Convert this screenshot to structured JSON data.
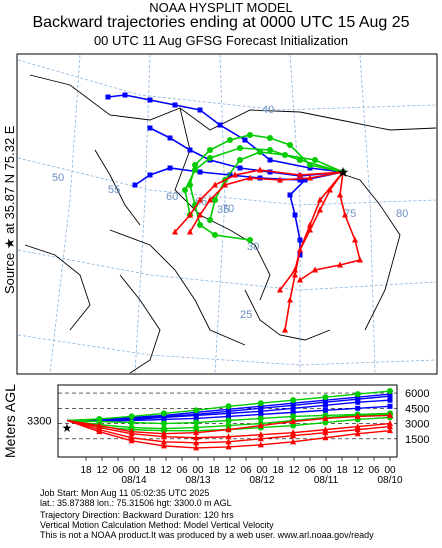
{
  "header": {
    "line1": "NOAA HYSPLIT MODEL",
    "line2": "Backward trajectories ending at 0000 UTC 15 Aug 25",
    "line3": "00 UTC 11 Aug    GFSG  Forecast Initialization"
  },
  "source_label": "Source ★ at   35.87 N   75.32 E",
  "agl_label": "Meters AGL",
  "map_labels": {
    "lat": [
      "40",
      "35",
      "30",
      "25"
    ],
    "lon": [
      "50",
      "55",
      "60",
      "65",
      "70",
      "75",
      "80"
    ]
  },
  "footer": {
    "line1": "Job Start: Mon Aug 11 05:02:35 UTC 2025",
    "line2": "lat.: 35.87388   lon.: 75.31506   hgt: 3300.0 m AGL",
    "line3": "Trajectory Direction: Backward        Duration: 120 hrs",
    "line4": "Vertical Motion Calculation Method: Model Vertical Velocity",
    "line5": "This is not a NOAA product.It was produced by a web user. www.arl.noaa.gov/ready"
  },
  "colors": {
    "red": "#ff0000",
    "blue": "#0000ff",
    "green": "#00cc00"
  },
  "chart_data": {
    "type": "line",
    "title": "Backward trajectories ending at 0000 UTC 15 Aug 25",
    "source": {
      "lat": 35.87,
      "lon": 75.32,
      "height_m": 3300
    },
    "height_axis": {
      "label": "Meters AGL",
      "right_ticks": [
        6000,
        4500,
        3000,
        1500
      ],
      "left_tick": 3300,
      "ylim": [
        0,
        6500
      ]
    },
    "time_axis": {
      "hour_ticks": [
        "18",
        "12",
        "06",
        "00",
        "18",
        "12",
        "06",
        "00",
        "18",
        "12",
        "06",
        "00",
        "18",
        "12",
        "06",
        "00",
        "18",
        "12",
        "06",
        "00"
      ],
      "date_ticks": [
        "08/14",
        "08/13",
        "08/12",
        "08/11",
        "08/10"
      ],
      "hours_back": [
        0,
        120
      ]
    },
    "series": [
      {
        "color": "blue",
        "hours_back": [
          0,
          12,
          24,
          36,
          48,
          60,
          72,
          84,
          96,
          108,
          120
        ],
        "height_m": [
          3300,
          3400,
          3600,
          3800,
          4100,
          4400,
          4700,
          5000,
          5300,
          5600,
          5900
        ]
      },
      {
        "color": "blue",
        "hours_back": [
          0,
          12,
          24,
          36,
          48,
          60,
          72,
          84,
          96,
          108,
          120
        ],
        "height_m": [
          3300,
          3350,
          3500,
          3700,
          3900,
          4200,
          4500,
          4800,
          5100,
          5400,
          5700
        ]
      },
      {
        "color": "blue",
        "hours_back": [
          0,
          12,
          24,
          36,
          48,
          60,
          72,
          84,
          96,
          108,
          120
        ],
        "height_m": [
          3300,
          3300,
          3400,
          3600,
          3800,
          4000,
          4200,
          4500,
          4800,
          5100,
          5300
        ]
      },
      {
        "color": "blue",
        "hours_back": [
          0,
          12,
          24,
          36,
          48,
          60,
          72,
          84,
          96,
          108,
          120
        ],
        "height_m": [
          3300,
          3250,
          3300,
          3400,
          3500,
          3700,
          3900,
          4100,
          4300,
          4500,
          4700
        ]
      },
      {
        "color": "green",
        "hours_back": [
          0,
          12,
          24,
          36,
          48,
          60,
          72,
          84,
          96,
          108,
          120
        ],
        "height_m": [
          3300,
          3450,
          3700,
          4000,
          4300,
          4700,
          5000,
          5300,
          5600,
          5900,
          6200
        ]
      },
      {
        "color": "green",
        "hours_back": [
          0,
          12,
          24,
          36,
          48,
          60,
          72,
          84,
          96,
          108,
          120
        ],
        "height_m": [
          3300,
          3200,
          3100,
          3000,
          3100,
          3300,
          3500,
          3700,
          3800,
          3900,
          4000
        ]
      },
      {
        "color": "green",
        "hours_back": [
          0,
          12,
          24,
          36,
          48,
          60,
          72,
          84,
          96,
          108,
          120
        ],
        "height_m": [
          3300,
          2900,
          2600,
          2500,
          2600,
          2800,
          3000,
          3300,
          3600,
          3800,
          3900
        ]
      },
      {
        "color": "green",
        "hours_back": [
          0,
          12,
          24,
          36,
          48,
          60,
          72,
          84,
          96,
          108,
          120
        ],
        "height_m": [
          3300,
          2700,
          2400,
          2300,
          2300,
          2400,
          2600,
          2800,
          3100,
          3400,
          3600
        ]
      },
      {
        "color": "red",
        "hours_back": [
          0,
          12,
          24,
          36,
          48,
          60,
          72,
          84,
          96,
          108,
          120
        ],
        "height_m": [
          3300,
          2600,
          2000,
          1700,
          1600,
          1700,
          1900,
          2100,
          2400,
          2700,
          3000
        ]
      },
      {
        "color": "red",
        "hours_back": [
          0,
          12,
          24,
          36,
          48,
          60,
          72,
          84,
          96,
          108,
          120
        ],
        "height_m": [
          3300,
          2400,
          1600,
          1200,
          1100,
          1200,
          1500,
          1800,
          2100,
          2400,
          2700
        ]
      },
      {
        "color": "red",
        "hours_back": [
          0,
          12,
          24,
          36,
          48,
          60,
          72,
          84,
          96,
          108,
          120
        ],
        "height_m": [
          3300,
          2200,
          1300,
          800,
          600,
          700,
          900,
          1200,
          1600,
          2000,
          2300
        ]
      },
      {
        "color": "red",
        "hours_back": [
          0,
          12,
          24,
          36,
          48,
          60,
          72,
          84,
          96,
          108,
          120
        ],
        "height_m": [
          3300,
          2800,
          2200,
          2000,
          2100,
          2400,
          2800,
          3200,
          3500,
          3700,
          3800
        ]
      }
    ]
  }
}
